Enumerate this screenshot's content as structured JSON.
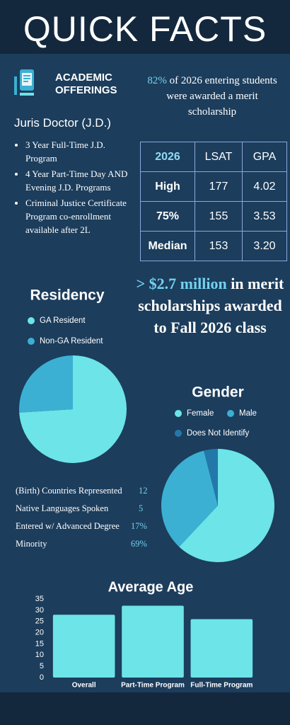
{
  "header": {
    "title": "QUICK FACTS"
  },
  "academic": {
    "heading": "ACADEMIC OFFERINGS",
    "program": "Juris Doctor (J.D.)",
    "bullets": [
      "3 Year Full-Time J.D. Program",
      "4 Year Part-Time Day AND Evening J.D. Programs",
      "Criminal Justice Certificate Program co-enrollment available after 2L"
    ]
  },
  "scholarship": {
    "highlight": "82%",
    "text": " of 2026 entering students were awarded a merit scholarship"
  },
  "table": {
    "header": [
      "2026",
      "LSAT",
      "GPA"
    ],
    "rows": [
      [
        "High",
        "177",
        "4.02"
      ],
      [
        "75%",
        "155",
        "3.53"
      ],
      [
        "Median",
        "153",
        "3.20"
      ]
    ]
  },
  "award": {
    "highlight": "> $2.7 million",
    "text": " in merit scholarships awarded to Fall 2026 class"
  },
  "stats": [
    {
      "label": "(Birth) Countries Represented",
      "value": "12"
    },
    {
      "label": "Native Languages Spoken",
      "value": "5"
    },
    {
      "label": "Entered w/ Advanced Degree",
      "value": "17%"
    },
    {
      "label": "Minority",
      "value": "69%"
    }
  ],
  "chart_data": [
    {
      "type": "pie",
      "title": "Residency",
      "categories": [
        "GA Resident",
        "Non-GA Resident"
      ],
      "values": [
        74,
        26
      ],
      "colors": [
        "#6ce4e8",
        "#3bb0d3"
      ]
    },
    {
      "type": "pie",
      "title": "Gender",
      "categories": [
        "Female",
        "Male",
        "Does Not Identify"
      ],
      "values": [
        62,
        34,
        4
      ],
      "colors": [
        "#6ce4e8",
        "#3bb0d3",
        "#2378aa"
      ]
    },
    {
      "type": "bar",
      "title": "Average Age",
      "categories": [
        "Overall",
        "Part-Time Program",
        "Full-Time Program"
      ],
      "values": [
        28,
        32,
        26
      ],
      "color": "#6ce4e8",
      "ylim": [
        0,
        35
      ],
      "yticks": [
        0,
        5,
        10,
        15,
        20,
        25,
        30,
        35
      ]
    }
  ]
}
